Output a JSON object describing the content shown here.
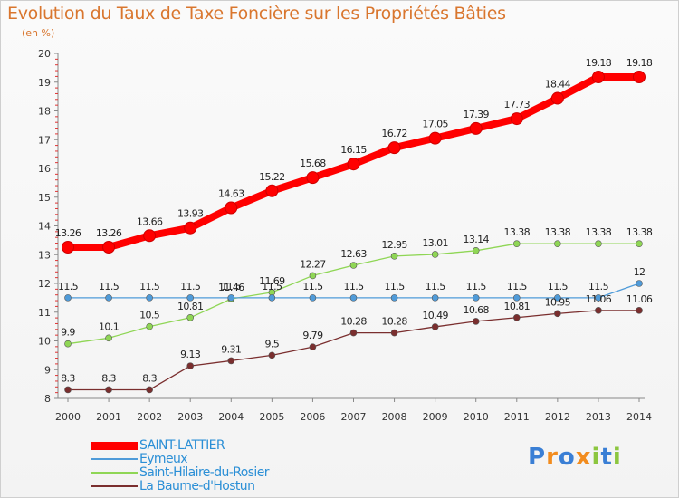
{
  "title": "Evolution du Taux de Taxe Foncière sur les Propriétés Bâties",
  "unit": "(en %)",
  "logo": {
    "text": "Proxiti",
    "letters": [
      "P",
      "r",
      "o",
      "x",
      "i",
      "t",
      "i"
    ],
    "colors": [
      "#3a7fd5",
      "#f28c1e",
      "#3a7fd5",
      "#f28c1e",
      "#8cc63f",
      "#3a7fd5",
      "#8cc63f"
    ]
  },
  "chart_data": {
    "type": "line",
    "title": "Evolution du Taux de Taxe Foncière sur les Propriétés Bâties",
    "ylabel": "(en %)",
    "xlabel": "",
    "ylim": [
      8,
      20
    ],
    "yticks": [
      8,
      9,
      10,
      11,
      12,
      13,
      14,
      15,
      16,
      17,
      18,
      19,
      20
    ],
    "categories": [
      "2000",
      "2001",
      "2002",
      "2003",
      "2004",
      "2005",
      "2006",
      "2007",
      "2008",
      "2009",
      "2010",
      "2011",
      "2012",
      "2013",
      "2014"
    ],
    "grid": false,
    "series": [
      {
        "name": "SAINT-LATTIER",
        "color": "#ff0000",
        "values": [
          13.26,
          13.26,
          13.66,
          13.93,
          14.63,
          15.22,
          15.68,
          16.15,
          16.72,
          17.05,
          17.39,
          17.73,
          18.44,
          19.18,
          19.18
        ],
        "labels": [
          "13.26",
          "13.26",
          "13.66",
          "13.93",
          "14.63",
          "15.22",
          "15.68",
          "16.15",
          "16.72",
          "17.05",
          "17.39",
          "17.73",
          "18.44",
          "19.18",
          "19.18"
        ]
      },
      {
        "name": "Eymeux",
        "color": "#4f9bd9",
        "values": [
          11.5,
          11.5,
          11.5,
          11.5,
          11.5,
          11.5,
          11.5,
          11.5,
          11.5,
          11.5,
          11.5,
          11.5,
          11.5,
          11.5,
          12
        ],
        "labels": [
          "11.5",
          "11.5",
          "11.5",
          "11.5",
          "11.5",
          "11.5",
          "11.5",
          "11.5",
          "11.5",
          "11.5",
          "11.5",
          "11.5",
          "11.5",
          "11.5",
          "12"
        ]
      },
      {
        "name": "Saint-Hilaire-du-Rosier",
        "color": "#8fd655",
        "values": [
          9.9,
          10.1,
          10.5,
          10.81,
          11.46,
          11.69,
          12.27,
          12.63,
          12.95,
          13.01,
          13.14,
          13.38,
          13.38,
          13.38,
          13.38
        ],
        "labels": [
          "9.9",
          "10.1",
          "10.5",
          "10.81",
          "11.46",
          "11.69",
          "12.27",
          "12.63",
          "12.95",
          "13.01",
          "13.14",
          "13.38",
          "13.38",
          "13.38",
          "13.38"
        ]
      },
      {
        "name": "La Baume-d'Hostun",
        "color": "#7a2e2e",
        "values": [
          8.3,
          8.3,
          8.3,
          9.13,
          9.31,
          9.5,
          9.79,
          10.28,
          10.28,
          10.49,
          10.68,
          10.81,
          10.95,
          11.06,
          11.06
        ],
        "labels": [
          "8.3",
          "8.3",
          "8.3",
          "9.13",
          "9.31",
          "9.5",
          "9.79",
          "10.28",
          "10.28",
          "10.49",
          "10.68",
          "10.81",
          "10.95",
          "11.06",
          "11.06"
        ]
      }
    ]
  }
}
